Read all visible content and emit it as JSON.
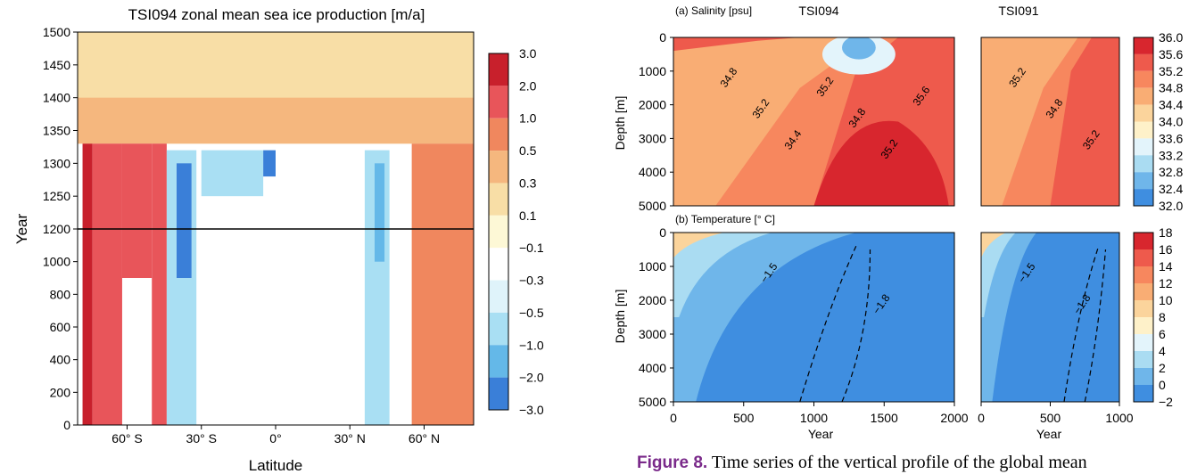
{
  "chart_data": [
    {
      "type": "heatmap",
      "title": "TSI094 zonal mean sea ice production [m/a]",
      "xlabel": "Latitude",
      "ylabel": "Year",
      "xlim": [
        -80,
        80
      ],
      "ylim": [
        0,
        1500
      ],
      "x_ticks": [
        "60° S",
        "30° S",
        "0°",
        "30° N",
        "60° N"
      ],
      "x_tick_values": [
        -60,
        -30,
        0,
        30,
        60
      ],
      "y_ticks": [
        0,
        200,
        400,
        600,
        800,
        1000,
        1200,
        1250,
        1300,
        1350,
        1400,
        1450,
        1500
      ],
      "y_axis_note": "piecewise: 0-1200 compressed, 1200-1500 expanded",
      "reference_line_year": 1200,
      "colorbar": {
        "labels": [
          "3.0",
          "2.0",
          "1.0",
          "0.5",
          "0.3",
          "0.1",
          "−0.1",
          "−0.3",
          "−0.5",
          "−1.0",
          "−2.0",
          "−3.0"
        ],
        "colors": [
          "#c8202c",
          "#e8555a",
          "#f0875e",
          "#f5b77e",
          "#f8dea6",
          "#fdf8d6",
          "#ffffff",
          "#dff3fa",
          "#a9dff3",
          "#64b8e8",
          "#3a7fd8",
          "#1f3fae"
        ]
      },
      "regions": [
        {
          "lat": [
            -80,
            80
          ],
          "years": [
            1330,
            1500
          ],
          "value": 0.2
        },
        {
          "lat": [
            -80,
            80
          ],
          "years": [
            1330,
            1400
          ],
          "value": 0.4
        },
        {
          "lat": [
            -78,
            -74
          ],
          "years": [
            0,
            1330
          ],
          "value": 2.2
        },
        {
          "lat": [
            -74,
            -62
          ],
          "years": [
            0,
            1330
          ],
          "value": 1.2
        },
        {
          "lat": [
            -62,
            -50
          ],
          "years": [
            900,
            1330
          ],
          "value": 2.0
        },
        {
          "lat": [
            -50,
            -44
          ],
          "years": [
            0,
            1330
          ],
          "value": 1.5
        },
        {
          "lat": [
            -44,
            -32
          ],
          "years": [
            0,
            1320
          ],
          "value": -0.7
        },
        {
          "lat": [
            -40,
            -34
          ],
          "years": [
            900,
            1300
          ],
          "value": -2.5
        },
        {
          "lat": [
            -30,
            -5
          ],
          "years": [
            1250,
            1320
          ],
          "value": -0.8
        },
        {
          "lat": [
            -5,
            0
          ],
          "years": [
            1280,
            1320
          ],
          "value": -2.3
        },
        {
          "lat": [
            36,
            46
          ],
          "years": [
            0,
            1320
          ],
          "value": -0.7
        },
        {
          "lat": [
            40,
            44
          ],
          "years": [
            1000,
            1300
          ],
          "value": -1.3
        },
        {
          "lat": [
            55,
            80
          ],
          "years": [
            0,
            1330
          ],
          "value": 0.8
        }
      ]
    },
    {
      "type": "heatmap",
      "panel_label": "(a) Salinity [psu]",
      "subplots": [
        "TSI094",
        "TSI091"
      ],
      "xlabel": "Year",
      "ylabel": "Depth [m]",
      "ylim": [
        5000,
        0
      ],
      "y_ticks": [
        0,
        1000,
        2000,
        3000,
        4000,
        5000
      ],
      "x_ticks_left": [
        0,
        500,
        1000,
        1500,
        2000
      ],
      "x_ticks_right": [
        0,
        500,
        1000
      ],
      "colorbar": {
        "labels": [
          "36.0",
          "35.6",
          "35.2",
          "34.8",
          "34.4",
          "34.0",
          "33.6",
          "33.2",
          "32.8",
          "32.4",
          "32.0"
        ],
        "colors": [
          "#d8262e",
          "#ee5a4c",
          "#f7875e",
          "#f9ad74",
          "#fbd49c",
          "#fef1c9",
          "#e3f4fb",
          "#aadcf2",
          "#6fb6ea",
          "#3f8ee0",
          "#2a6fd6"
        ]
      },
      "contour_labels_left": [
        "34.8",
        "35.2",
        "34.4",
        "35.2",
        "34.8",
        "35.2",
        "35.6"
      ],
      "contour_labels_right": [
        "35.2",
        "34.8",
        "35.2"
      ]
    },
    {
      "type": "heatmap",
      "panel_label": "(b) Temperature [° C]",
      "subplots": [
        "TSI094",
        "TSI091"
      ],
      "xlabel": "Year",
      "ylabel": "Depth [m]",
      "ylim": [
        5000,
        0
      ],
      "y_ticks": [
        0,
        1000,
        2000,
        3000,
        4000,
        5000
      ],
      "x_ticks_left": [
        0,
        500,
        1000,
        1500,
        2000
      ],
      "x_ticks_right": [
        0,
        500,
        1000
      ],
      "colorbar": {
        "labels": [
          "18",
          "16",
          "14",
          "12",
          "10",
          "8",
          "6",
          "4",
          "2",
          "0",
          "−2"
        ],
        "colors": [
          "#d8262e",
          "#ee5a4c",
          "#f7875e",
          "#f9ad74",
          "#fbd49c",
          "#fef1c9",
          "#e3f4fb",
          "#aadcf2",
          "#6fb6ea",
          "#3f8ee0"
        ]
      },
      "contour_labels_left": [
        "−1.5",
        "−1.8"
      ],
      "contour_labels_right": [
        "−1.5",
        "−1.8"
      ]
    }
  ],
  "caption": {
    "label": "Figure 8.",
    "text": " Time series of the vertical profile of the global mean"
  }
}
